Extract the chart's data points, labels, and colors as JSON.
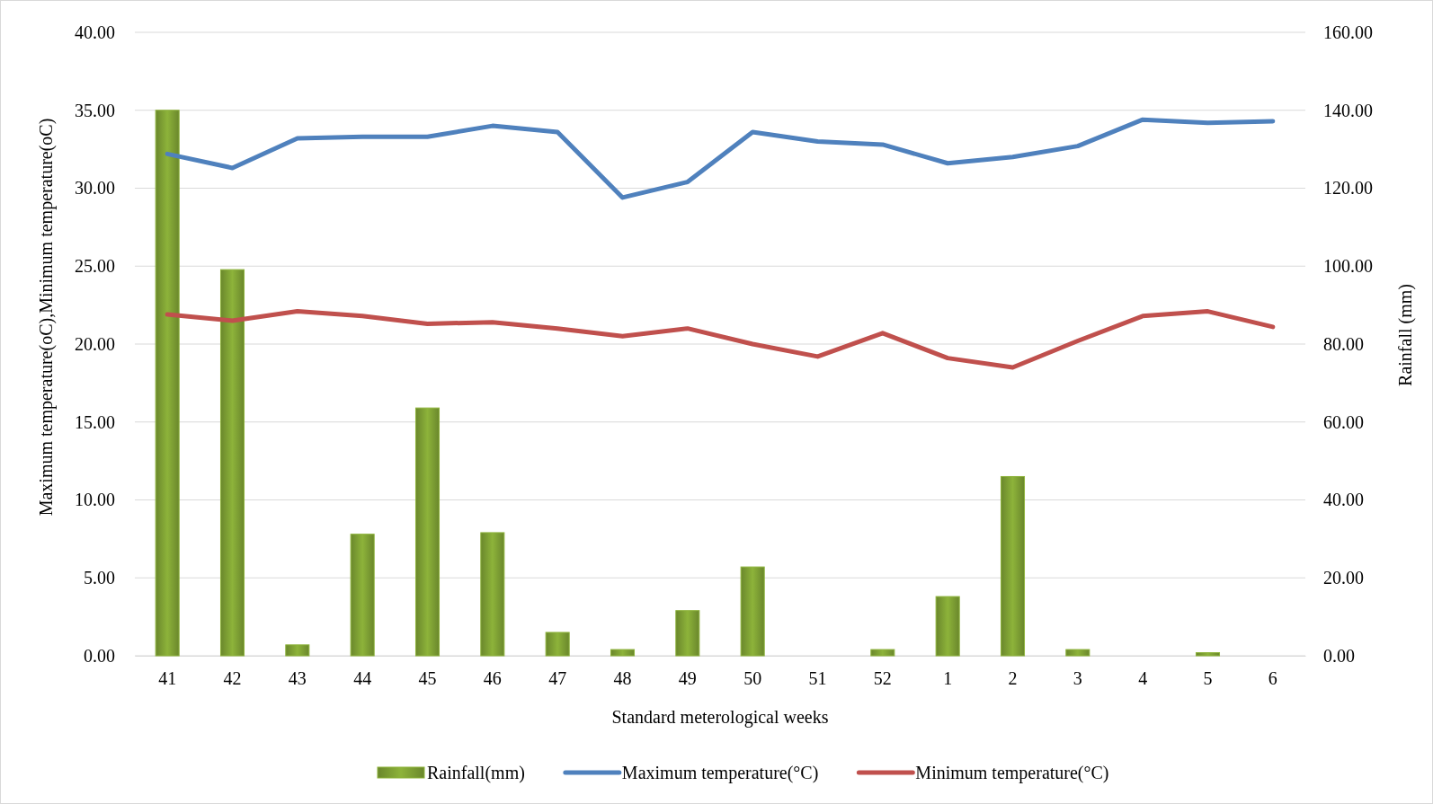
{
  "chart_data": {
    "type": "bar",
    "xlabel": "Standard meterological weeks",
    "ylabel": "Maximum temperature(oC),Minimum temperature(oC)",
    "y2label": "Rainfall (mm)",
    "categories": [
      "41",
      "42",
      "43",
      "44",
      "45",
      "46",
      "47",
      "48",
      "49",
      "50",
      "51",
      "52",
      "1",
      "2",
      "3",
      "4",
      "5",
      "6"
    ],
    "series": [
      {
        "name": "Rainfall(mm)",
        "axis": "y2",
        "color": "#8db33a",
        "values": [
          140.0,
          99.1,
          2.8,
          31.2,
          63.6,
          31.6,
          6.0,
          1.6,
          11.6,
          22.8,
          0,
          1.6,
          15.2,
          46.0,
          1.6,
          0,
          0.8,
          0
        ]
      },
      {
        "name": "Maximum temperature(°C)",
        "type": "line",
        "color": "#4f81bd",
        "values": [
          32.2,
          31.3,
          33.2,
          33.3,
          33.3,
          34.0,
          33.6,
          29.4,
          30.4,
          33.6,
          33.0,
          32.8,
          31.6,
          32.0,
          32.7,
          34.4,
          34.2,
          34.3
        ]
      },
      {
        "name": "Minimum temperature(°C)",
        "type": "line",
        "color": "#c0504d",
        "values": [
          21.9,
          21.5,
          22.1,
          21.8,
          21.3,
          21.4,
          21.0,
          20.5,
          21.0,
          20.0,
          19.2,
          20.7,
          19.1,
          18.5,
          20.2,
          21.8,
          22.1,
          21.1
        ]
      }
    ],
    "ylim": [
      0,
      40
    ],
    "yticks": [
      {
        "value": 0,
        "label": "0.00"
      },
      {
        "value": 5,
        "label": "5.00"
      },
      {
        "value": 10,
        "label": "10.00"
      },
      {
        "value": 15,
        "label": "15.00"
      },
      {
        "value": 20,
        "label": "20.00"
      },
      {
        "value": 25,
        "label": "25.00"
      },
      {
        "value": 30,
        "label": "30.00"
      },
      {
        "value": 35,
        "label": "35.00"
      },
      {
        "value": 40,
        "label": "40.00"
      }
    ],
    "y2lim": [
      0,
      160
    ],
    "y2ticks": [
      {
        "value": 0,
        "label": "0.00"
      },
      {
        "value": 20,
        "label": "20.00"
      },
      {
        "value": 40,
        "label": "40.00"
      },
      {
        "value": 60,
        "label": "60.00"
      },
      {
        "value": 80,
        "label": "80.00"
      },
      {
        "value": 100,
        "label": "100.00"
      },
      {
        "value": 120,
        "label": "120.00"
      },
      {
        "value": 140,
        "label": "140.00"
      },
      {
        "value": 160,
        "label": "160.00"
      }
    ],
    "grid": "y",
    "legend": "bottom",
    "line_style": "solid",
    "marker": "none"
  }
}
